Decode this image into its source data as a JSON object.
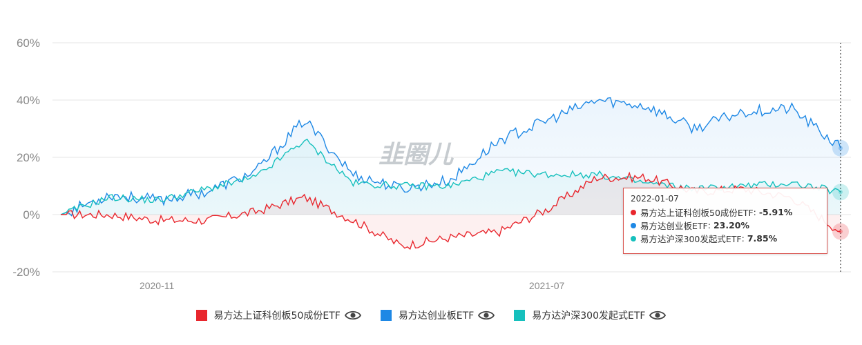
{
  "colors": {
    "red": "#e8262d",
    "blue": "#1e88e5",
    "teal": "#16c0bd",
    "grid": "#e6e6e6"
  },
  "watermark": "韭圈儿",
  "tooltip": {
    "date": "2022-01-07",
    "rows": [
      {
        "name": "易方达上证科创板50成份ETF",
        "value": "-5.91%"
      },
      {
        "name": "易方达创业板ETF",
        "value": "23.20%"
      },
      {
        "name": "易方达沪深300发起式ETF",
        "value": "7.85%"
      }
    ]
  },
  "chart_data": {
    "type": "line",
    "title": "",
    "ylim": [
      -20,
      60
    ],
    "y_ticks": [
      "60%",
      "40%",
      "20%",
      "0%",
      "-20%"
    ],
    "x_tick_labels": [
      "2020-11",
      "2021-07"
    ],
    "grid": true,
    "legend_position": "bottom",
    "x": [
      "2020-09",
      "2020-10",
      "2020-11",
      "2020-12",
      "2021-01",
      "2021-02",
      "2021-03",
      "2021-04",
      "2021-05",
      "2021-06",
      "2021-07",
      "2021-08",
      "2021-09",
      "2021-10",
      "2021-11",
      "2021-12",
      "2022-01-07"
    ],
    "series": [
      {
        "name": "易方达上证科创板50成份ETF",
        "color": "#e8262d",
        "values": [
          0,
          0,
          -2,
          -2,
          1,
          6,
          -2,
          -11,
          -8,
          -6,
          2,
          13,
          13,
          8,
          9,
          6,
          -5.91
        ]
      },
      {
        "name": "易方达创业板ETF",
        "color": "#1e88e5",
        "values": [
          0,
          7,
          5,
          8,
          15,
          33,
          14,
          9,
          12,
          26,
          33,
          40,
          38,
          30,
          36,
          37,
          23.2
        ]
      },
      {
        "name": "易方达沪深300发起式ETF",
        "color": "#16c0bd",
        "values": [
          0,
          6,
          5,
          9,
          13,
          26,
          11,
          10,
          10,
          15,
          14,
          14,
          11,
          9,
          10,
          11,
          7.85
        ]
      }
    ]
  }
}
